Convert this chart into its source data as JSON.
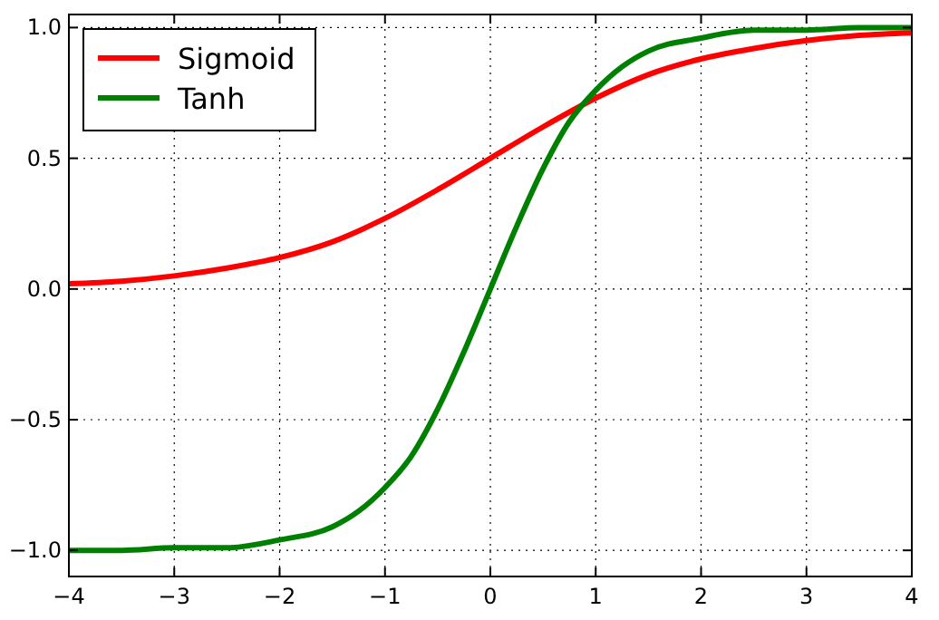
{
  "chart_data": {
    "type": "line",
    "xlim": [
      -4,
      4
    ],
    "ylim": [
      -1.1,
      1.05
    ],
    "xticks": [
      {
        "value": -4,
        "label": "−4"
      },
      {
        "value": -3,
        "label": "−3"
      },
      {
        "value": -2,
        "label": "−2"
      },
      {
        "value": -1,
        "label": "−1"
      },
      {
        "value": 0,
        "label": "0"
      },
      {
        "value": 1,
        "label": "1"
      },
      {
        "value": 2,
        "label": "2"
      },
      {
        "value": 3,
        "label": "3"
      },
      {
        "value": 4,
        "label": "4"
      }
    ],
    "yticks": [
      {
        "value": -1,
        "label": "−1.0"
      },
      {
        "value": -0.5,
        "label": "−0.5"
      },
      {
        "value": 0,
        "label": "0.0"
      },
      {
        "value": 0.5,
        "label": "0.5"
      },
      {
        "value": 1,
        "label": "1.0"
      }
    ],
    "grid": true,
    "legend": "top left",
    "line_style": "solid",
    "series": [
      {
        "name": "Sigmoid",
        "color": "#ff0000",
        "x": [
          -4,
          -3.5,
          -3,
          -2.5,
          -2,
          -1.5,
          -1,
          -0.5,
          0,
          0.5,
          1,
          1.5,
          2,
          2.5,
          3,
          3.5,
          4
        ],
        "values": [
          0.02,
          0.03,
          0.05,
          0.08,
          0.12,
          0.18,
          0.27,
          0.38,
          0.5,
          0.62,
          0.73,
          0.82,
          0.88,
          0.92,
          0.95,
          0.97,
          0.98
        ]
      },
      {
        "name": "Tanh",
        "color": "#008000",
        "x": [
          -4,
          -3.5,
          -3,
          -2.5,
          -2,
          -1.5,
          -1.25,
          -1,
          -0.75,
          -0.5,
          -0.25,
          0,
          0.25,
          0.5,
          0.75,
          1,
          1.25,
          1.5,
          2,
          2.5,
          3,
          3.5,
          4
        ],
        "values": [
          -1,
          -1,
          -0.99,
          -0.99,
          -0.96,
          -0.91,
          -0.85,
          -0.76,
          -0.64,
          -0.46,
          -0.24,
          0,
          0.24,
          0.46,
          0.64,
          0.76,
          0.85,
          0.91,
          0.96,
          0.99,
          0.99,
          1,
          1
        ]
      }
    ]
  }
}
